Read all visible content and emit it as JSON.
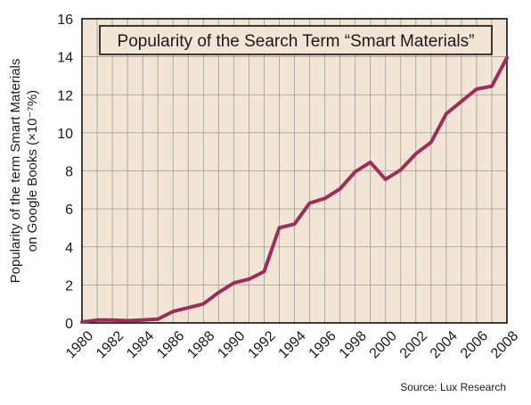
{
  "chart_data": {
    "type": "line",
    "title": "Popularity of the Search Term “Smart Materials”",
    "ylabel_line1": "Popularity of the term Smart Materials",
    "ylabel_line2": "on Google Books (×10⁻⁷%)",
    "xlabel": "",
    "source": "Source: Lux Research",
    "xlim": [
      1980,
      2008
    ],
    "ylim": [
      0,
      16
    ],
    "xticks": [
      "1980",
      "1982",
      "1984",
      "1986",
      "1988",
      "1990",
      "1992",
      "1994",
      "1996",
      "1998",
      "2000",
      "2002",
      "2004",
      "2006",
      "2008"
    ],
    "yticks": [
      "0",
      "2",
      "4",
      "6",
      "8",
      "10",
      "12",
      "14",
      "16"
    ],
    "grid": true,
    "series": [
      {
        "x": [
          1980,
          1981,
          1982,
          1983,
          1984,
          1985,
          1986,
          1987,
          1988,
          1989,
          1990,
          1991,
          1992,
          1993,
          1994,
          1995,
          1996,
          1997,
          1998,
          1999,
          2000,
          2001,
          2002,
          2003,
          2004,
          2005,
          2006,
          2007,
          2008
        ],
        "values": [
          0.05,
          0.15,
          0.15,
          0.12,
          0.15,
          0.2,
          0.6,
          0.8,
          1.0,
          1.6,
          2.1,
          2.3,
          2.7,
          5.0,
          5.2,
          6.3,
          6.55,
          7.05,
          7.95,
          8.45,
          7.55,
          8.05,
          8.9,
          9.5,
          11.0,
          11.65,
          12.3,
          12.45,
          13.95
        ]
      }
    ]
  },
  "colors": {
    "plot_background": "#f3e5d6",
    "grid": "#9a9a9a",
    "line": "#9c2e5a",
    "frame": "#000000"
  }
}
